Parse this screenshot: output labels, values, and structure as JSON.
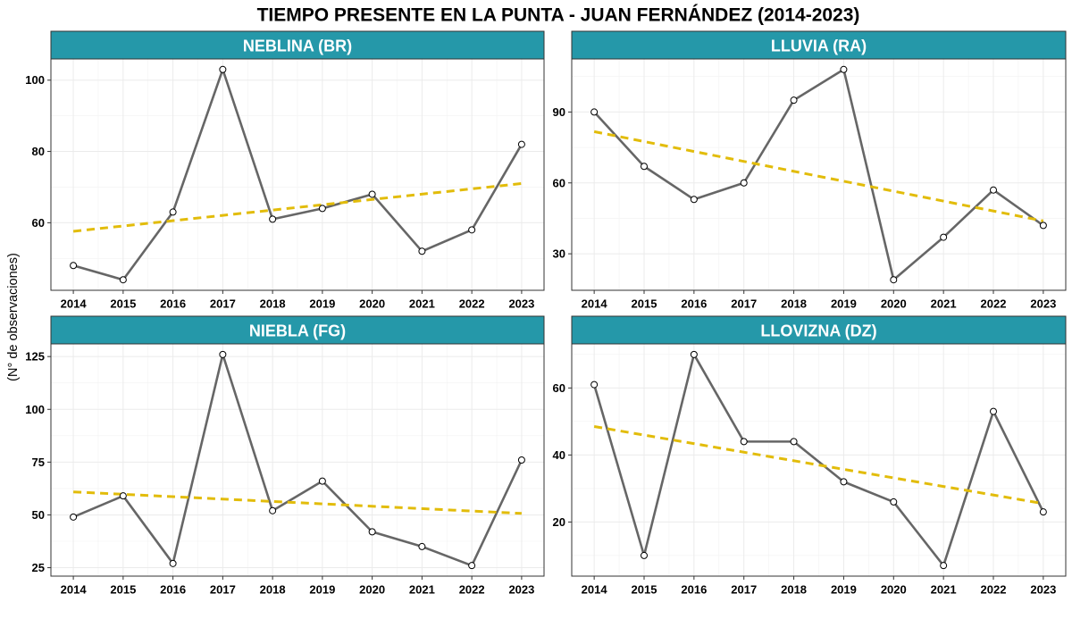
{
  "chart_data": {
    "type": "line",
    "title": "TIEMPO PRESENTE EN LA PUNTA - JUAN FERNÁNDEZ (2014-2023)",
    "xlabel": "",
    "ylabel": "(N° de observaciones)",
    "x": [
      2014,
      2015,
      2016,
      2017,
      2018,
      2019,
      2020,
      2021,
      2022,
      2023
    ],
    "xlim": [
      2013.55,
      2023.45
    ],
    "grid": true,
    "colors": {
      "line": "#666666",
      "point_fill": "#FFFFFF",
      "point_stroke": "#000000",
      "trend": "#E2BC0A",
      "strip": "#2598A9"
    },
    "panels": [
      {
        "title": "NEBLINA (BR)",
        "values": [
          48,
          44,
          63,
          103,
          61,
          64,
          68,
          52,
          58,
          82
        ],
        "trend": {
          "x": [
            2014,
            2023
          ],
          "y": [
            57.6,
            71.0
          ]
        },
        "ylim": [
          41.05,
          105.95
        ],
        "yticks": [
          60,
          80,
          100
        ]
      },
      {
        "title": "LLUVIA (RA)",
        "values": [
          90,
          67,
          53,
          60,
          95,
          108,
          19,
          37,
          57,
          42
        ],
        "trend": {
          "x": [
            2014,
            2023
          ],
          "y": [
            81.7,
            43.9
          ]
        },
        "ylim": [
          14.55,
          112.45
        ],
        "yticks": [
          30,
          60,
          90
        ]
      },
      {
        "title": "NIEBLA (FG)",
        "values": [
          49,
          59,
          27,
          126,
          52,
          66,
          42,
          35,
          26,
          76
        ],
        "trend": {
          "x": [
            2014,
            2023
          ],
          "y": [
            60.9,
            50.7
          ]
        },
        "ylim": [
          21,
          131
        ],
        "yticks": [
          25,
          50,
          75,
          100,
          125
        ]
      },
      {
        "title": "LLOVIZNA (DZ)",
        "values": [
          61,
          10,
          70,
          44,
          44,
          32,
          26,
          7,
          53,
          23
        ],
        "trend": {
          "x": [
            2014,
            2023
          ],
          "y": [
            48.5,
            25.5
          ]
        },
        "ylim": [
          3.85,
          73.15
        ],
        "yticks": [
          20,
          40,
          60
        ]
      }
    ]
  }
}
